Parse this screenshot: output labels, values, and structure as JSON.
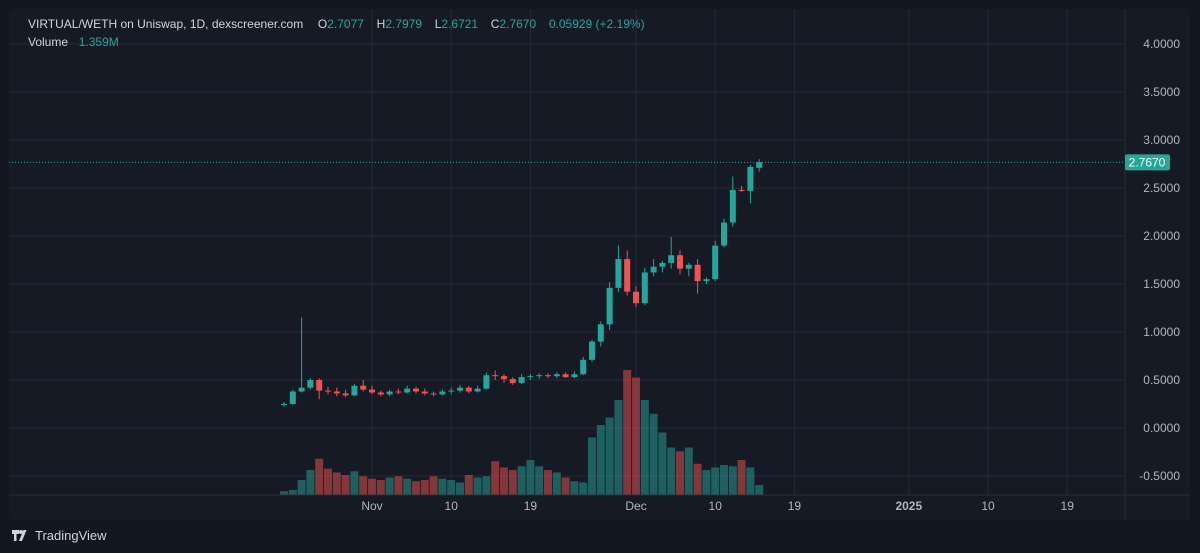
{
  "legend": {
    "pair": "VIRTUAL/WETH on Uniswap, 1D, dexscreener.com",
    "o_label": "O",
    "o_value": "2.7077",
    "h_label": "H",
    "h_value": "2.7979",
    "l_label": "L",
    "l_value": "2.6721",
    "c_label": "C",
    "c_value": "2.7670",
    "change": "0.05929 (+2.19%)",
    "volume_label": "Volume",
    "volume_value": "1.359M"
  },
  "footer": {
    "brand": "TradingView"
  },
  "colors": {
    "up": "#26a69a",
    "down": "#ef5350",
    "background": "#161a25",
    "grid": "#252a36",
    "text": "#b2b5be"
  },
  "chart_data": {
    "type": "candlestick",
    "y_ticks": [
      "4.0000",
      "3.5000",
      "3.0000",
      "2.5000",
      "2.0000",
      "1.5000",
      "1.0000",
      "0.5000",
      "0.0000",
      "-0.5000"
    ],
    "y_range": [
      -0.65,
      4.1
    ],
    "last_price": 2.767,
    "last_price_label": "2.7670",
    "x_ticks": [
      {
        "label": "Nov",
        "day": 10
      },
      {
        "label": "10",
        "day": 19
      },
      {
        "label": "19",
        "day": 28
      },
      {
        "label": "Dec",
        "day": 40
      },
      {
        "label": "10",
        "day": 49
      },
      {
        "label": "19",
        "day": 58
      },
      {
        "label": "2025",
        "day": 71
      },
      {
        "label": "10",
        "day": 80
      },
      {
        "label": "19",
        "day": 89
      }
    ],
    "grid": true,
    "candles": [
      [
        0.24,
        0.27,
        0.22,
        0.25
      ],
      [
        0.25,
        0.4,
        0.24,
        0.38
      ],
      [
        0.38,
        1.15,
        0.37,
        0.42
      ],
      [
        0.42,
        0.52,
        0.4,
        0.5
      ],
      [
        0.5,
        0.52,
        0.3,
        0.39
      ],
      [
        0.39,
        0.43,
        0.35,
        0.38
      ],
      [
        0.38,
        0.42,
        0.33,
        0.36
      ],
      [
        0.36,
        0.4,
        0.32,
        0.34
      ],
      [
        0.34,
        0.46,
        0.33,
        0.44
      ],
      [
        0.44,
        0.5,
        0.38,
        0.4
      ],
      [
        0.4,
        0.44,
        0.35,
        0.37
      ],
      [
        0.37,
        0.39,
        0.33,
        0.35
      ],
      [
        0.35,
        0.4,
        0.33,
        0.38
      ],
      [
        0.38,
        0.41,
        0.35,
        0.37
      ],
      [
        0.37,
        0.44,
        0.36,
        0.41
      ],
      [
        0.41,
        0.43,
        0.36,
        0.38
      ],
      [
        0.38,
        0.41,
        0.34,
        0.36
      ],
      [
        0.36,
        0.38,
        0.33,
        0.35
      ],
      [
        0.35,
        0.4,
        0.34,
        0.38
      ],
      [
        0.38,
        0.42,
        0.35,
        0.39
      ],
      [
        0.39,
        0.45,
        0.37,
        0.42
      ],
      [
        0.42,
        0.44,
        0.36,
        0.38
      ],
      [
        0.38,
        0.44,
        0.37,
        0.41
      ],
      [
        0.41,
        0.58,
        0.4,
        0.55
      ],
      [
        0.55,
        0.6,
        0.5,
        0.54
      ],
      [
        0.54,
        0.56,
        0.47,
        0.51
      ],
      [
        0.51,
        0.53,
        0.45,
        0.47
      ],
      [
        0.47,
        0.56,
        0.46,
        0.53
      ],
      [
        0.53,
        0.56,
        0.5,
        0.54
      ],
      [
        0.54,
        0.57,
        0.51,
        0.55
      ],
      [
        0.55,
        0.57,
        0.52,
        0.54
      ],
      [
        0.54,
        0.58,
        0.52,
        0.56
      ],
      [
        0.56,
        0.58,
        0.52,
        0.53
      ],
      [
        0.53,
        0.59,
        0.52,
        0.56
      ],
      [
        0.56,
        0.74,
        0.55,
        0.71
      ],
      [
        0.71,
        0.92,
        0.69,
        0.9
      ],
      [
        0.9,
        1.11,
        0.85,
        1.08
      ],
      [
        1.08,
        1.52,
        1.02,
        1.46
      ],
      [
        1.46,
        1.9,
        1.42,
        1.76
      ],
      [
        1.76,
        1.85,
        1.38,
        1.42
      ],
      [
        1.42,
        1.48,
        1.26,
        1.3
      ],
      [
        1.3,
        1.67,
        1.28,
        1.62
      ],
      [
        1.62,
        1.76,
        1.58,
        1.68
      ],
      [
        1.68,
        1.74,
        1.62,
        1.72
      ],
      [
        1.72,
        1.99,
        1.66,
        1.8
      ],
      [
        1.8,
        1.85,
        1.6,
        1.66
      ],
      [
        1.66,
        1.72,
        1.58,
        1.7
      ],
      [
        1.7,
        1.76,
        1.4,
        1.53
      ],
      [
        1.53,
        1.57,
        1.5,
        1.55
      ],
      [
        1.55,
        1.95,
        1.53,
        1.9
      ],
      [
        1.9,
        2.18,
        1.88,
        2.14
      ],
      [
        2.14,
        2.62,
        2.1,
        2.48
      ],
      [
        2.48,
        2.52,
        2.46,
        2.47
      ],
      [
        2.47,
        2.74,
        2.34,
        2.72
      ],
      [
        2.71,
        2.8,
        2.67,
        2.77
      ]
    ],
    "volumes": [
      0.3,
      0.4,
      1.2,
      2.0,
      2.9,
      2.1,
      1.8,
      1.6,
      1.9,
      1.5,
      1.3,
      1.2,
      1.4,
      1.5,
      1.3,
      1.1,
      1.2,
      1.5,
      1.3,
      1.2,
      1.0,
      1.6,
      1.4,
      1.5,
      2.7,
      2.2,
      2.0,
      2.3,
      2.8,
      2.3,
      2.0,
      1.8,
      1.4,
      1.1,
      1.0,
      4.6,
      5.6,
      6.2,
      7.6,
      10.0,
      9.4,
      7.6,
      6.5,
      5.0,
      3.8,
      3.5,
      3.8,
      2.5,
      2.0,
      2.2,
      2.4,
      2.3,
      2.8,
      2.2,
      0.8
    ]
  }
}
